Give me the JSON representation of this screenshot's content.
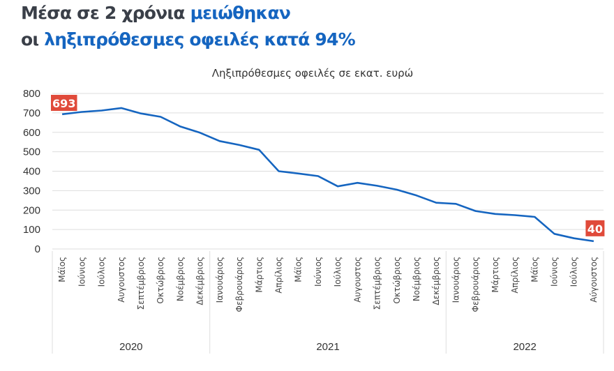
{
  "headline": {
    "line1_dark": "Μέσα σε 2 χρόνια ",
    "line1_blue": "μειώθηκαν",
    "line2_dark": "οι ",
    "line2_blue": "ληξιπρόθεσμες οφειλές κατά 94%"
  },
  "colors": {
    "line": "#1565c0",
    "label_bg": "#e04a3a",
    "grid": "#dddddd",
    "headline_dark": "#3a3f48",
    "headline_blue": "#1565c0"
  },
  "chart_data": {
    "type": "line",
    "title": "Ληξιπρόθεσμες οφειλές σε εκατ. ευρώ",
    "xlabel": "",
    "ylabel": "",
    "ylim": [
      0,
      800
    ],
    "yticks": [
      0,
      100,
      200,
      300,
      400,
      500,
      600,
      700,
      800
    ],
    "grid": true,
    "legend": "none",
    "categories": [
      "Μάϊος",
      "Ιούνιος",
      "Ιούλιος",
      "Αυγουστος",
      "Σεπτέμβριος",
      "Οκτώβριος",
      "Νοέμβριος",
      "Δεκέμβριος",
      "Ιανουάριος",
      "Φεβρουάριος",
      "Μάρτιος",
      "Απρίλιος",
      "Μάϊος",
      "Ιούνιος",
      "Ιούλιος",
      "Αυγουστος",
      "Σεπτέμβριος",
      "Οκτώβριος",
      "Νοέμβριος",
      "Δεκέμβριος",
      "Ιανουάριος",
      "Φεβρουάριος",
      "Μάρτιος",
      "Απρίλιος",
      "Μάϊος",
      "Ιούνιος",
      "Ιούλιος",
      "Αύγουστος"
    ],
    "groups": [
      {
        "label": "2020",
        "count": 8
      },
      {
        "label": "2021",
        "count": 12
      },
      {
        "label": "2022",
        "count": 8
      }
    ],
    "values": [
      693,
      705,
      712,
      725,
      697,
      680,
      630,
      598,
      555,
      535,
      510,
      400,
      388,
      375,
      322,
      340,
      325,
      305,
      275,
      238,
      232,
      195,
      180,
      174,
      165,
      78,
      55,
      40
    ],
    "data_labels": [
      {
        "index": 0,
        "text": "693"
      },
      {
        "index": 27,
        "text": "40"
      }
    ]
  }
}
